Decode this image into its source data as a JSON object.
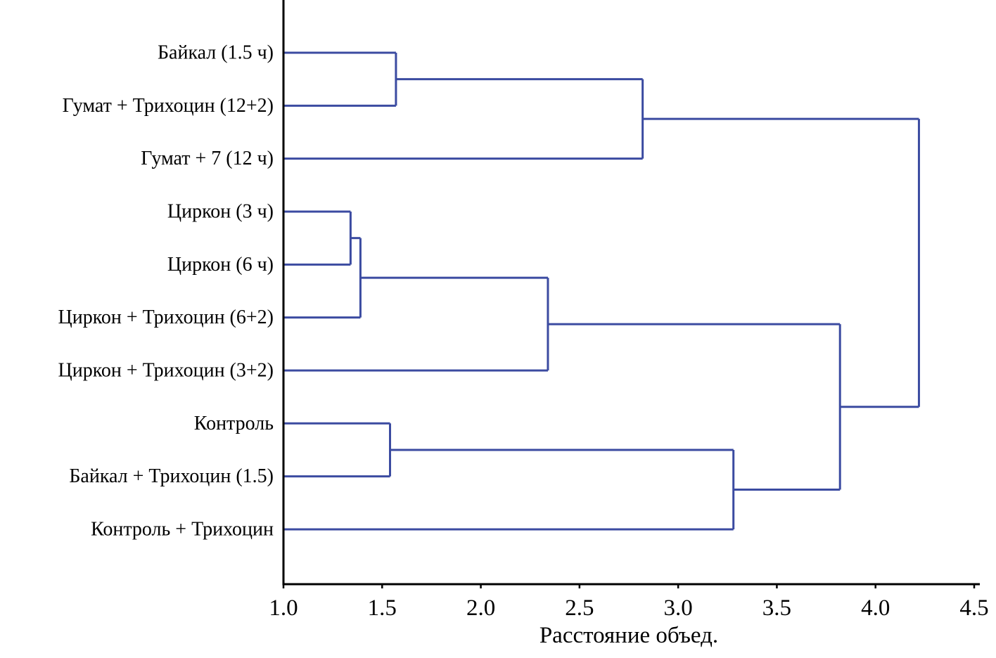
{
  "chart_data": {
    "type": "dendrogram",
    "orientation": "horizontal",
    "title": "",
    "xlabel": "Расстояние объед.",
    "xlim": [
      1.0,
      4.5
    ],
    "x_ticks": [
      "1.0",
      "1.5",
      "2.0",
      "2.5",
      "3.0",
      "3.5",
      "4.0",
      "4.5"
    ],
    "line_color": "#3b4ba1",
    "axis_color": "#000000",
    "leaves": [
      {
        "label": "Байкал (1.5 ч)"
      },
      {
        "label": "Гумат + Трихоцин (12+2)"
      },
      {
        "label": "Гумат + 7 (12 ч)"
      },
      {
        "label": "Циркон (3 ч)"
      },
      {
        "label": "Циркон (6 ч)"
      },
      {
        "label": "Циркон + Трихоцин (6+2)"
      },
      {
        "label": "Циркон + Трихоцин (3+2)"
      },
      {
        "label": "Контроль"
      },
      {
        "label": "Байкал + Трихоцин (1.5)"
      },
      {
        "label": "Контроль + Трихоцин"
      }
    ],
    "merges": [
      {
        "id": "C0",
        "a": "L0",
        "b": "L1",
        "distance": 1.57
      },
      {
        "id": "C1",
        "a": "C0",
        "b": "L2",
        "distance": 2.82
      },
      {
        "id": "C2",
        "a": "L3",
        "b": "L4",
        "distance": 1.34
      },
      {
        "id": "C3",
        "a": "C2",
        "b": "L5",
        "distance": 1.39
      },
      {
        "id": "C4",
        "a": "C3",
        "b": "L6",
        "distance": 2.34
      },
      {
        "id": "C5",
        "a": "L7",
        "b": "L8",
        "distance": 1.54
      },
      {
        "id": "C6",
        "a": "C5",
        "b": "L9",
        "distance": 3.28
      },
      {
        "id": "C7",
        "a": "C4",
        "b": "C6",
        "distance": 3.82
      },
      {
        "id": "C8",
        "a": "C1",
        "b": "C7",
        "distance": 4.22
      }
    ]
  }
}
